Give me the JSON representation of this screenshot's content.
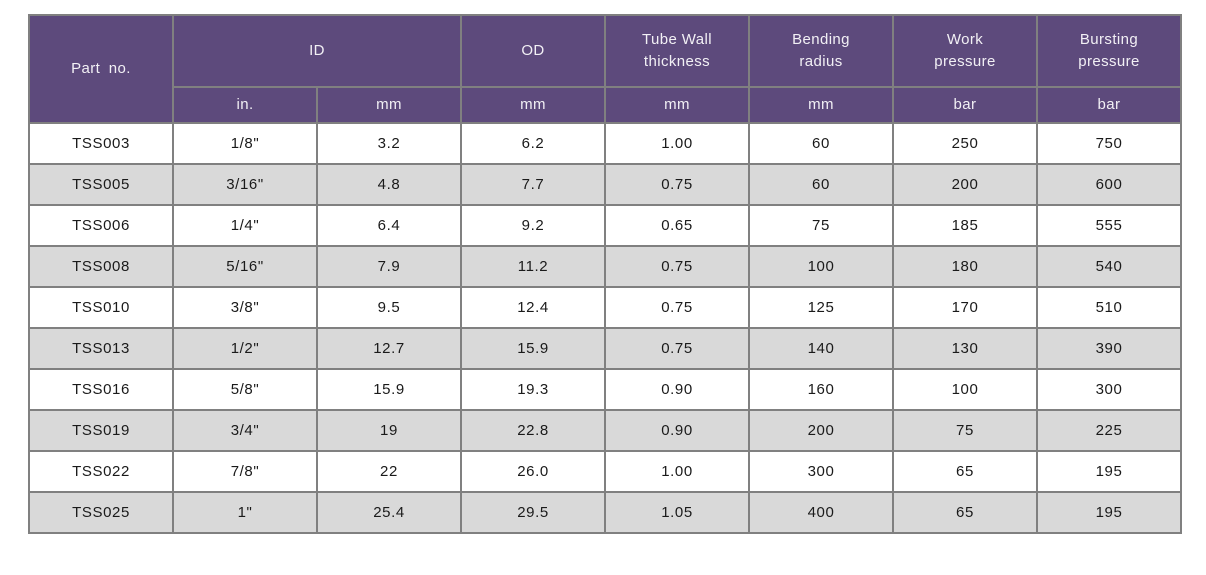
{
  "colors": {
    "header_bg": "#5d4a7c",
    "row_alt_bg": "#d9d9d9",
    "border": "#808080"
  },
  "table": {
    "header": {
      "part_no": "Part no.",
      "id_group": "ID",
      "od": "OD",
      "tube_wall": "Tube Wall thickness",
      "bending_radius": "Bending radius",
      "work_pressure": "Work pressure",
      "bursting_pressure": "Bursting pressure",
      "units": {
        "id_in": "in.",
        "id_mm": "mm",
        "od_mm": "mm",
        "tube_wall_mm": "mm",
        "bending_mm": "mm",
        "work_bar": "bar",
        "bursting_bar": "bar"
      }
    },
    "column_keys": [
      "part-no",
      "id-in",
      "id-mm",
      "od-mm",
      "tube-wall-mm",
      "bending-radius-mm",
      "work-pressure-bar",
      "bursting-pressure-bar"
    ],
    "rows": [
      [
        "TSS003",
        "1/8\"",
        "3.2",
        "6.2",
        "1.00",
        "60",
        "250",
        "750"
      ],
      [
        "TSS005",
        "3/16\"",
        "4.8",
        "7.7",
        "0.75",
        "60",
        "200",
        "600"
      ],
      [
        "TSS006",
        "1/4\"",
        "6.4",
        "9.2",
        "0.65",
        "75",
        "185",
        "555"
      ],
      [
        "TSS008",
        "5/16\"",
        "7.9",
        "11.2",
        "0.75",
        "100",
        "180",
        "540"
      ],
      [
        "TSS010",
        "3/8\"",
        "9.5",
        "12.4",
        "0.75",
        "125",
        "170",
        "510"
      ],
      [
        "TSS013",
        "1/2\"",
        "12.7",
        "15.9",
        "0.75",
        "140",
        "130",
        "390"
      ],
      [
        "TSS016",
        "5/8\"",
        "15.9",
        "19.3",
        "0.90",
        "160",
        "100",
        "300"
      ],
      [
        "TSS019",
        "3/4\"",
        "19",
        "22.8",
        "0.90",
        "200",
        "75",
        "225"
      ],
      [
        "TSS022",
        "7/8\"",
        "22",
        "26.0",
        "1.00",
        "300",
        "65",
        "195"
      ],
      [
        "TSS025",
        "1\"",
        "25.4",
        "29.5",
        "1.05",
        "400",
        "65",
        "195"
      ]
    ]
  },
  "chart_data": {
    "type": "table",
    "title": "",
    "columns": [
      "Part no.",
      "ID in.",
      "ID mm",
      "OD mm",
      "Tube Wall thickness mm",
      "Bending radius mm",
      "Work pressure bar",
      "Bursting pressure bar"
    ],
    "rows": [
      [
        "TSS003",
        "1/8\"",
        3.2,
        6.2,
        1.0,
        60,
        250,
        750
      ],
      [
        "TSS005",
        "3/16\"",
        4.8,
        7.7,
        0.75,
        60,
        200,
        600
      ],
      [
        "TSS006",
        "1/4\"",
        6.4,
        9.2,
        0.65,
        75,
        185,
        555
      ],
      [
        "TSS008",
        "5/16\"",
        7.9,
        11.2,
        0.75,
        100,
        180,
        540
      ],
      [
        "TSS010",
        "3/8\"",
        9.5,
        12.4,
        0.75,
        125,
        170,
        510
      ],
      [
        "TSS013",
        "1/2\"",
        12.7,
        15.9,
        0.75,
        140,
        130,
        390
      ],
      [
        "TSS016",
        "5/8\"",
        15.9,
        19.3,
        0.9,
        160,
        100,
        300
      ],
      [
        "TSS019",
        "3/4\"",
        19,
        22.8,
        0.9,
        200,
        75,
        225
      ],
      [
        "TSS022",
        "7/8\"",
        22,
        26.0,
        1.0,
        300,
        65,
        195
      ],
      [
        "TSS025",
        "1\"",
        25.4,
        29.5,
        1.05,
        400,
        65,
        195
      ]
    ]
  }
}
